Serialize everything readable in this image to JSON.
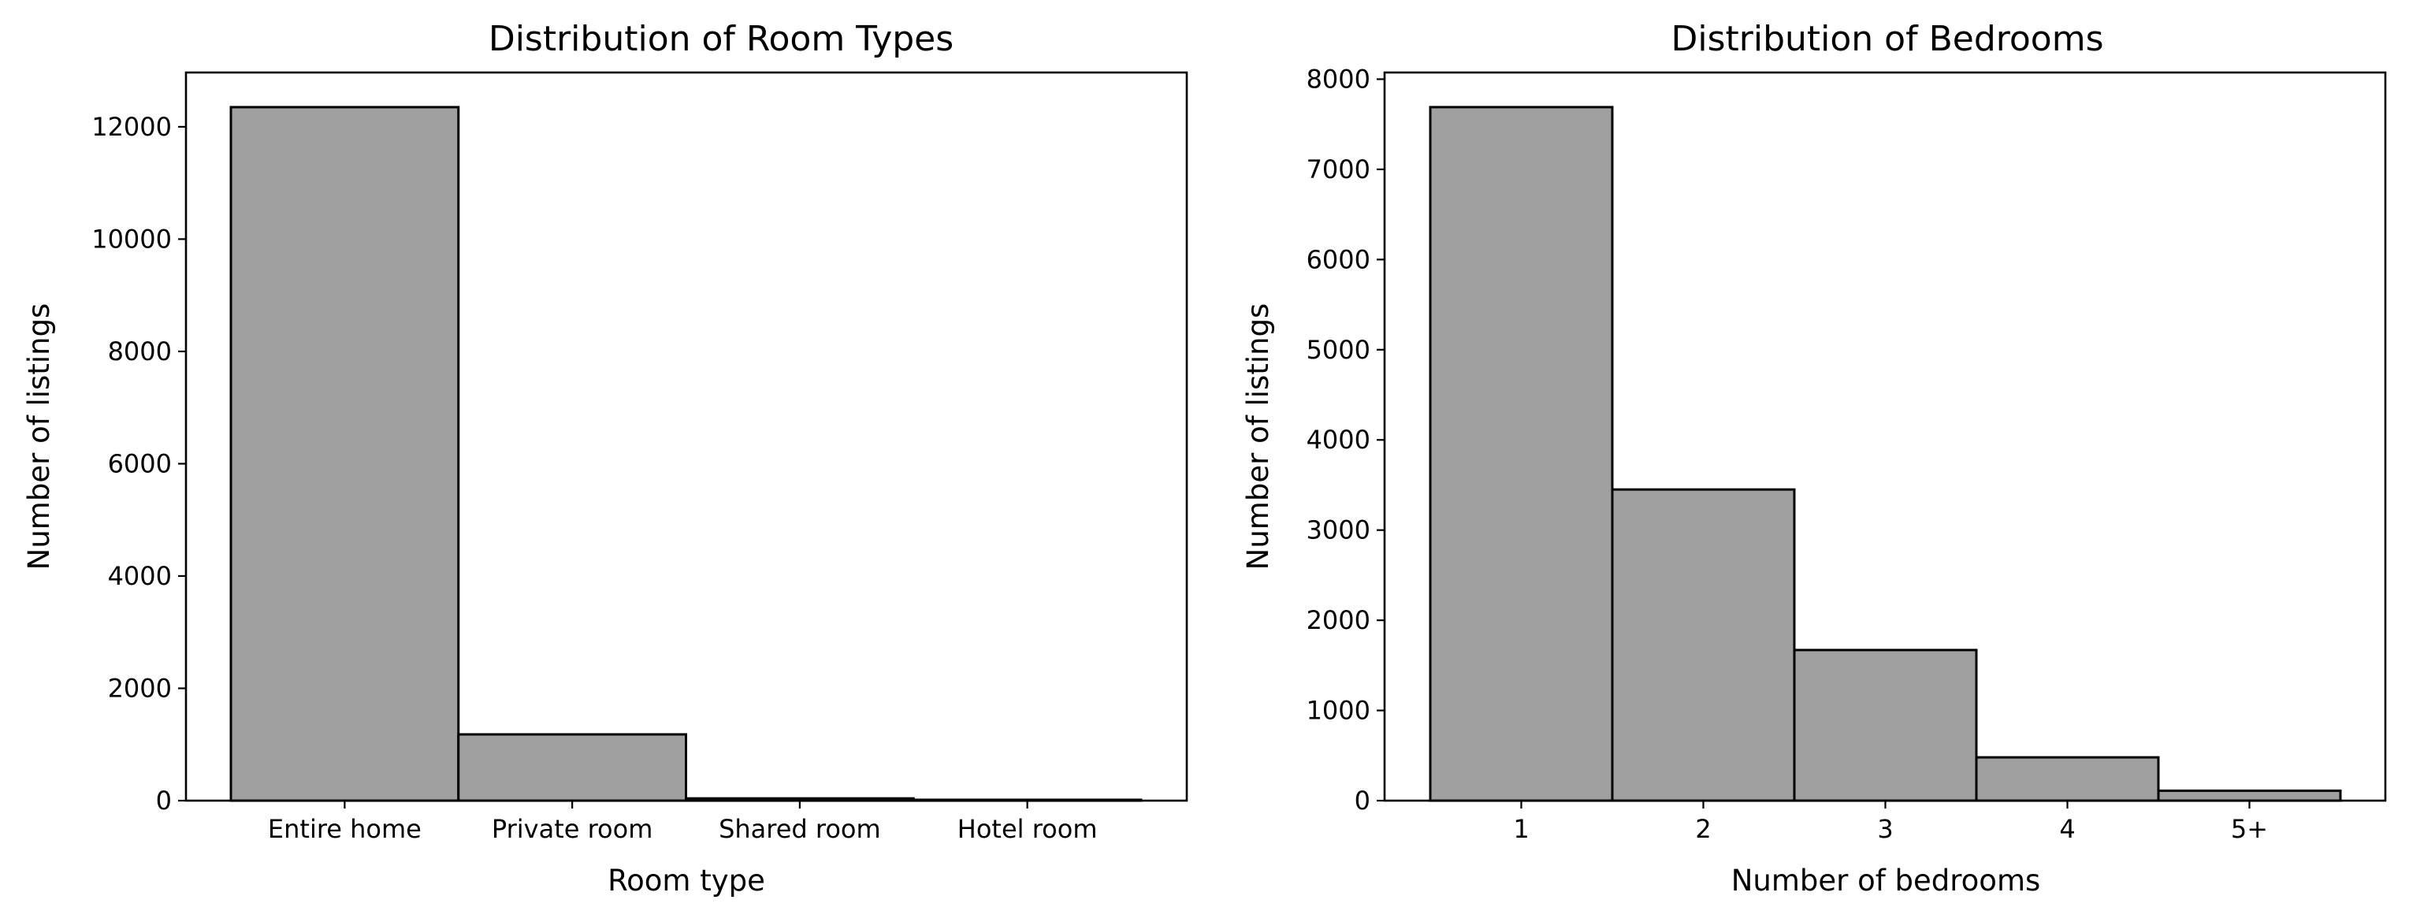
{
  "colors": {
    "bar_fill": "#a0a0a0",
    "bar_edge": "#000000",
    "axis": "#000000",
    "background": "#ffffff"
  },
  "chart_data": [
    {
      "type": "bar",
      "title": "Distribution of Room Types",
      "xlabel": "Room type",
      "ylabel": "Number of listings",
      "categories": [
        "Entire home",
        "Private room",
        "Shared room",
        "Hotel room"
      ],
      "values": [
        12350,
        1180,
        40,
        15
      ],
      "ylim": [
        0,
        12967
      ],
      "yticks": [
        "0",
        "2000",
        "4000",
        "6000",
        "8000",
        "10000",
        "12000"
      ],
      "grid": false,
      "legend": "none"
    },
    {
      "type": "bar",
      "title": "Distribution of Bedrooms",
      "xlabel": "Number of bedrooms",
      "ylabel": "Number of listings",
      "categories": [
        "1",
        "2",
        "3",
        "4",
        "5+"
      ],
      "values": [
        7690,
        3450,
        1670,
        480,
        110
      ],
      "ylim": [
        0,
        8074
      ],
      "yticks": [
        "0",
        "1000",
        "2000",
        "3000",
        "4000",
        "5000",
        "6000",
        "7000",
        "8000"
      ],
      "grid": false,
      "legend": "none"
    }
  ]
}
